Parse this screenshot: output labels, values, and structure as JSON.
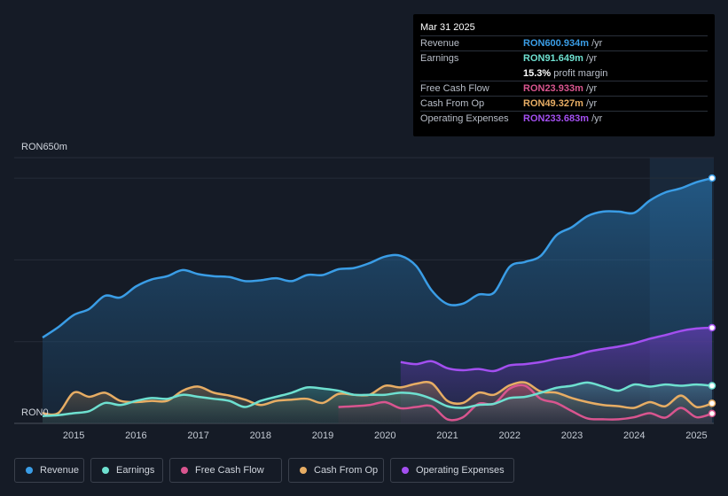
{
  "colors": {
    "background": "#151b26",
    "revenue": "#3a9de6",
    "earnings": "#6ee0d0",
    "free_cash_flow": "#d9558f",
    "cash_from_op": "#e7ad64",
    "operating_expenses": "#a34ff0"
  },
  "tooltip": {
    "date": "Mar 31 2025",
    "rows": [
      {
        "label": "Revenue",
        "value": "RON600.934m",
        "unit": "/yr",
        "color": "#3a9de6"
      },
      {
        "label": "Earnings",
        "value": "RON91.649m",
        "unit": "/yr",
        "color": "#6ee0d0"
      },
      {
        "label": "",
        "value": "15.3%",
        "unit": "profit margin",
        "color": "#ffffff"
      },
      {
        "label": "Free Cash Flow",
        "value": "RON23.933m",
        "unit": "/yr",
        "color": "#d9558f"
      },
      {
        "label": "Cash From Op",
        "value": "RON49.327m",
        "unit": "/yr",
        "color": "#e7ad64"
      },
      {
        "label": "Operating Expenses",
        "value": "RON233.683m",
        "unit": "/yr",
        "color": "#a34ff0"
      }
    ]
  },
  "legend": [
    {
      "label": "Revenue",
      "color": "#3a9de6"
    },
    {
      "label": "Earnings",
      "color": "#6ee0d0"
    },
    {
      "label": "Free Cash Flow",
      "color": "#d9558f"
    },
    {
      "label": "Cash From Op",
      "color": "#e7ad64"
    },
    {
      "label": "Operating Expenses",
      "color": "#a34ff0"
    }
  ],
  "chart_data": {
    "type": "area",
    "title": "",
    "ylabel_top": "RON650m",
    "ylabel_bottom": "RON0",
    "ylim": [
      0,
      650
    ],
    "xlim": [
      2014.1,
      2025.35
    ],
    "x_ticks": [
      "2015",
      "2016",
      "2017",
      "2018",
      "2019",
      "2020",
      "2021",
      "2022",
      "2023",
      "2024",
      "2025"
    ],
    "forecast_shade_start": 2024.25,
    "series": [
      {
        "name": "Revenue",
        "x": [
          2014.5,
          2014.75,
          2015.0,
          2015.25,
          2015.5,
          2015.75,
          2016.0,
          2016.25,
          2016.5,
          2016.75,
          2017.0,
          2017.25,
          2017.5,
          2017.75,
          2018.0,
          2018.25,
          2018.5,
          2018.75,
          2019.0,
          2019.25,
          2019.5,
          2019.75,
          2020.0,
          2020.25,
          2020.5,
          2020.75,
          2021.0,
          2021.25,
          2021.5,
          2021.75,
          2022.0,
          2022.25,
          2022.5,
          2022.75,
          2023.0,
          2023.25,
          2023.5,
          2023.75,
          2024.0,
          2024.25,
          2024.5,
          2024.75,
          2025.0,
          2025.25
        ],
        "values": [
          210,
          235,
          265,
          280,
          312,
          308,
          335,
          352,
          360,
          375,
          365,
          360,
          358,
          348,
          350,
          355,
          348,
          363,
          363,
          377,
          380,
          392,
          408,
          410,
          385,
          325,
          292,
          293,
          315,
          320,
          383,
          395,
          410,
          460,
          480,
          507,
          518,
          518,
          515,
          545,
          565,
          575,
          590,
          600
        ]
      },
      {
        "name": "Operating Expenses",
        "x": [
          2020.25,
          2020.5,
          2020.75,
          2021.0,
          2021.25,
          2021.5,
          2021.75,
          2022.0,
          2022.25,
          2022.5,
          2022.75,
          2023.0,
          2023.25,
          2023.5,
          2023.75,
          2024.0,
          2024.25,
          2024.5,
          2024.75,
          2025.0,
          2025.25
        ],
        "values": [
          150,
          145,
          152,
          135,
          130,
          133,
          128,
          142,
          145,
          150,
          158,
          164,
          175,
          182,
          188,
          196,
          207,
          216,
          226,
          232,
          234
        ]
      },
      {
        "name": "Cash From Op",
        "x": [
          2014.5,
          2014.75,
          2015.0,
          2015.25,
          2015.5,
          2015.75,
          2016.0,
          2016.25,
          2016.5,
          2016.75,
          2017.0,
          2017.25,
          2017.5,
          2017.75,
          2018.0,
          2018.25,
          2018.5,
          2018.75,
          2019.0,
          2019.25,
          2019.5,
          2019.75,
          2020.0,
          2020.25,
          2020.5,
          2020.75,
          2021.0,
          2021.25,
          2021.5,
          2021.75,
          2022.0,
          2022.25,
          2022.5,
          2022.75,
          2023.0,
          2023.25,
          2023.5,
          2023.75,
          2024.0,
          2024.25,
          2024.5,
          2024.75,
          2025.0,
          2025.25
        ],
        "values": [
          25,
          25,
          75,
          65,
          75,
          55,
          52,
          55,
          55,
          80,
          90,
          75,
          68,
          58,
          45,
          55,
          58,
          60,
          50,
          72,
          70,
          70,
          92,
          88,
          97,
          98,
          55,
          50,
          75,
          70,
          93,
          100,
          78,
          75,
          62,
          52,
          45,
          42,
          38,
          52,
          42,
          68,
          40,
          49
        ]
      },
      {
        "name": "Free Cash Flow",
        "x": [
          2019.25,
          2019.5,
          2019.75,
          2020.0,
          2020.25,
          2020.5,
          2020.75,
          2021.0,
          2021.25,
          2021.5,
          2021.75,
          2022.0,
          2022.25,
          2022.5,
          2022.75,
          2023.0,
          2023.25,
          2023.5,
          2023.75,
          2024.0,
          2024.25,
          2024.5,
          2024.75,
          2025.0,
          2025.25
        ],
        "values": [
          40,
          42,
          45,
          52,
          37,
          40,
          42,
          10,
          15,
          48,
          48,
          85,
          92,
          60,
          50,
          30,
          12,
          10,
          10,
          15,
          25,
          14,
          38,
          15,
          24
        ]
      },
      {
        "name": "Earnings",
        "x": [
          2014.5,
          2014.75,
          2015.0,
          2015.25,
          2015.5,
          2015.75,
          2016.0,
          2016.25,
          2016.5,
          2016.75,
          2017.0,
          2017.25,
          2017.5,
          2017.75,
          2018.0,
          2018.25,
          2018.5,
          2018.75,
          2019.0,
          2019.25,
          2019.5,
          2019.75,
          2020.0,
          2020.25,
          2020.5,
          2020.75,
          2021.0,
          2021.25,
          2021.5,
          2021.75,
          2022.0,
          2022.25,
          2022.5,
          2022.75,
          2023.0,
          2023.25,
          2023.5,
          2023.75,
          2024.0,
          2024.25,
          2024.5,
          2024.75,
          2025.0,
          2025.25
        ],
        "values": [
          18,
          20,
          25,
          30,
          50,
          45,
          55,
          62,
          60,
          70,
          65,
          60,
          55,
          40,
          55,
          65,
          75,
          88,
          85,
          80,
          70,
          70,
          70,
          75,
          72,
          60,
          42,
          38,
          45,
          48,
          62,
          65,
          75,
          87,
          92,
          100,
          90,
          80,
          95,
          90,
          95,
          92,
          95,
          92
        ]
      }
    ]
  }
}
